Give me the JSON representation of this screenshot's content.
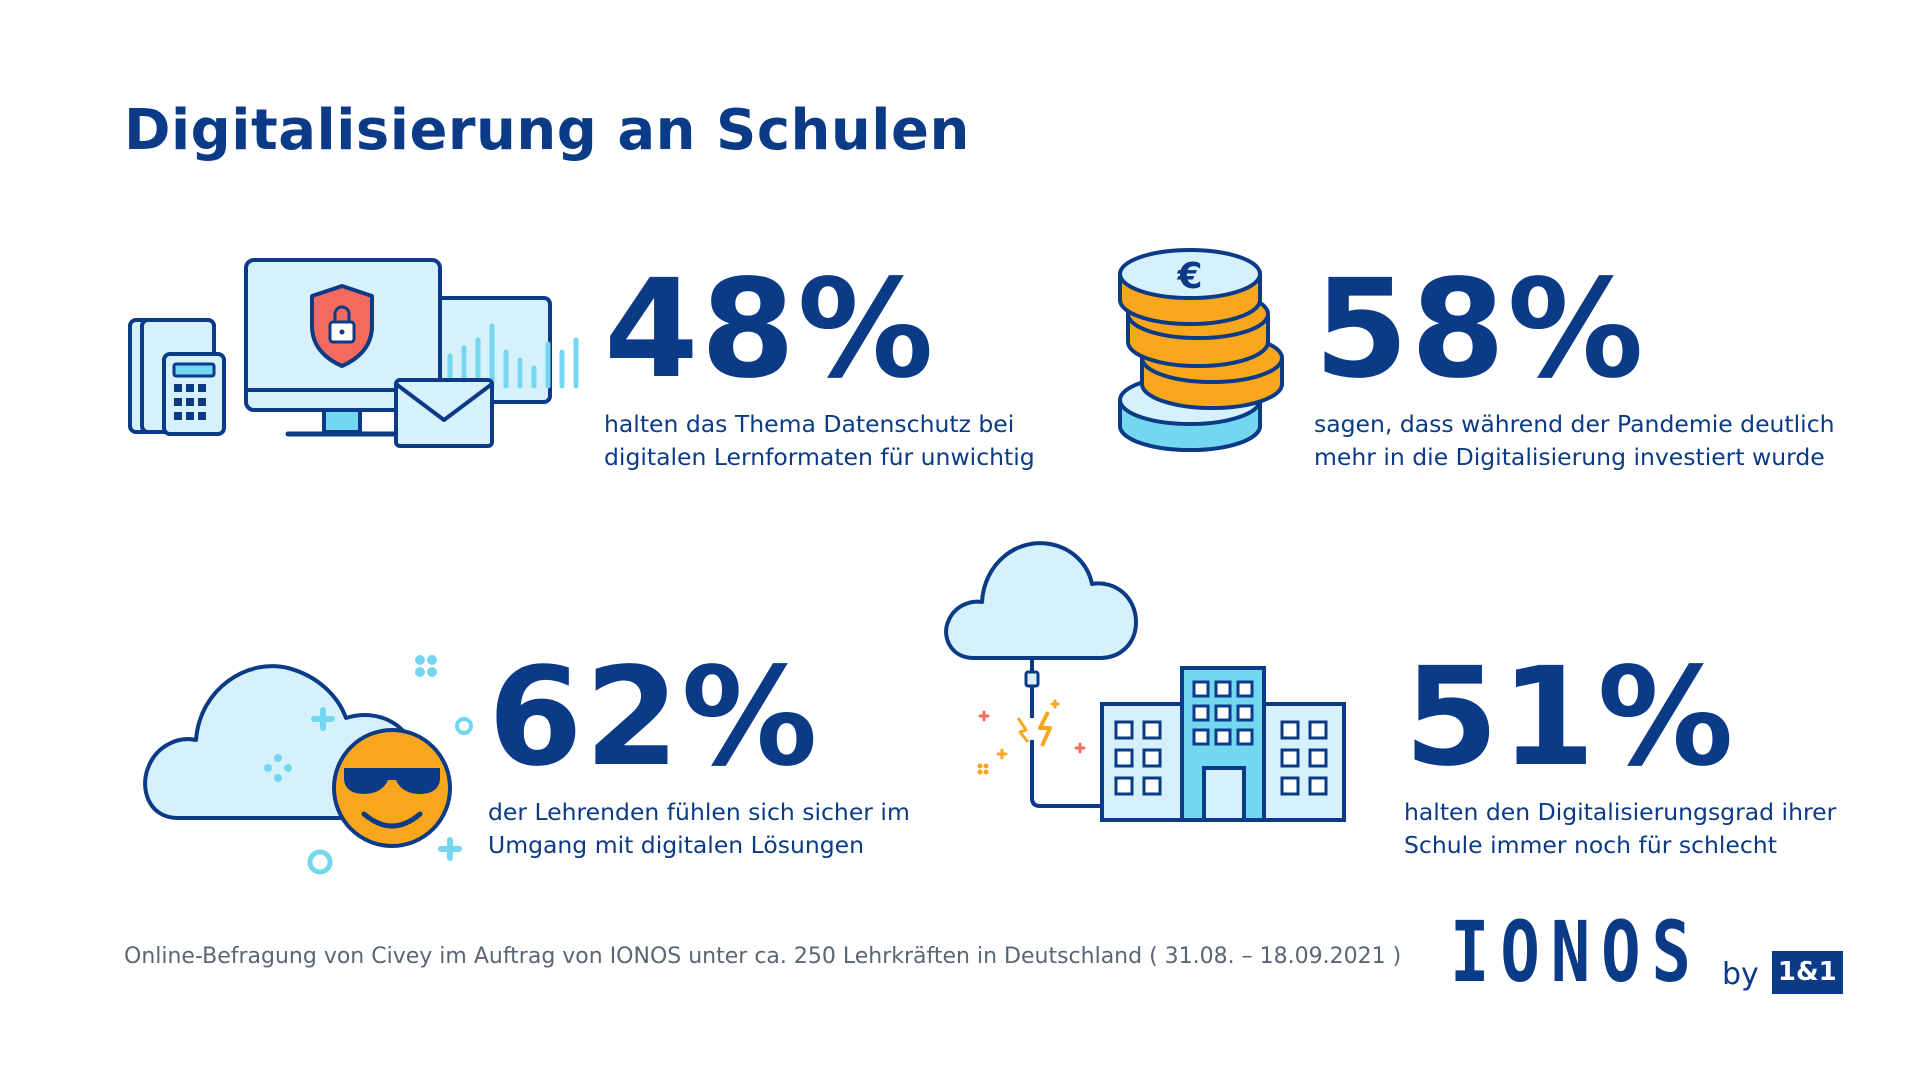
{
  "title": "Digitalisierung an Schulen",
  "stats": [
    {
      "value": "48%",
      "text_line1": "halten das Thema Datenschutz bei",
      "text_line2": "digitalen Lernformaten für unwichtig"
    },
    {
      "value": "58%",
      "text_line1": "sagen, dass während der Pandemie deutlich",
      "text_line2": "mehr in die Digitalisierung investiert wurde"
    },
    {
      "value": "62%",
      "text_line1": "der Lehrenden fühlen sich sicher im",
      "text_line2": "Umgang mit digitalen Lösungen"
    },
    {
      "value": "51%",
      "text_line1": "halten den Digitalisierungsgrad ihrer",
      "text_line2": "Schule immer noch für schlecht"
    }
  ],
  "footer": "Online-Befragung von Civey im Auftrag von IONOS unter ca. 250 Lehrkräften in Deutschland ( 31.08. – 18.09.2021 )",
  "logo": {
    "brand": "IONOS",
    "by": "by",
    "badge": "1&1"
  },
  "icons": {
    "stat1": "devices-security-icon",
    "stat2": "euro-coins-icon",
    "stat3": "cloud-sunglasses-smiley-icon",
    "stat4": "cloud-school-building-icon"
  },
  "colors": {
    "primary": "#0b3a86",
    "light_blue": "#d6f1fb",
    "accent_cyan": "#74d7f0",
    "orange": "#f8a61b",
    "red": "#f36b5f"
  }
}
